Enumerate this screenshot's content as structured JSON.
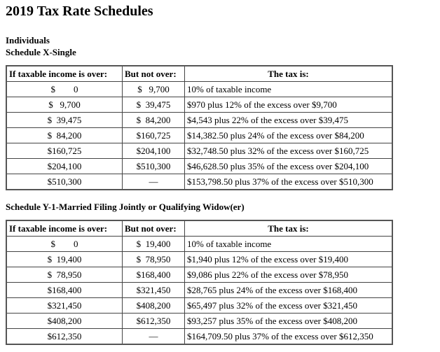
{
  "header": {
    "title": "2019 Tax Rate Schedules",
    "section": "Individuals"
  },
  "schedules": [
    {
      "title": "Schedule X-Single",
      "columns": [
        "If taxable income is over:",
        "But not over:",
        "The tax is:"
      ],
      "rows": [
        [
          "$        0",
          "$   9,700",
          "10% of taxable income"
        ],
        [
          "$   9,700",
          "$  39,475",
          "$970 plus 12% of the excess over $9,700"
        ],
        [
          "$  39,475",
          "$  84,200",
          "$4,543 plus 22% of the excess over $39,475"
        ],
        [
          "$  84,200",
          "$160,725",
          "$14,382.50 plus 24% of the excess over $84,200"
        ],
        [
          "$160,725",
          "$204,100",
          "$32,748.50 plus 32% of the excess over $160,725"
        ],
        [
          "$204,100",
          "$510,300",
          "$46,628.50 plus 35% of the excess over $204,100"
        ],
        [
          "$510,300",
          "—",
          "$153,798.50 plus 37% of the excess over $510,300"
        ]
      ]
    },
    {
      "title": "Schedule Y-1-Married Filing Jointly or Qualifying Widow(er)",
      "columns": [
        "If taxable income is over:",
        "But not over:",
        "The tax is:"
      ],
      "rows": [
        [
          "$        0",
          "$  19,400",
          "10% of taxable income"
        ],
        [
          "$  19,400",
          "$  78,950",
          "$1,940 plus 12% of the excess over $19,400"
        ],
        [
          "$  78,950",
          "$168,400",
          "$9,086 plus 22% of the excess over $78,950"
        ],
        [
          "$168,400",
          "$321,450",
          "$28,765 plus 24% of the excess over $168,400"
        ],
        [
          "$321,450",
          "$408,200",
          "$65,497 plus 32% of the excess over $321,450"
        ],
        [
          "$408,200",
          "$612,350",
          "$93,257 plus 35% of the excess over $408,200"
        ],
        [
          "$612,350",
          "—",
          "$164,709.50 plus 37% of the excess over $612,350"
        ]
      ]
    }
  ]
}
